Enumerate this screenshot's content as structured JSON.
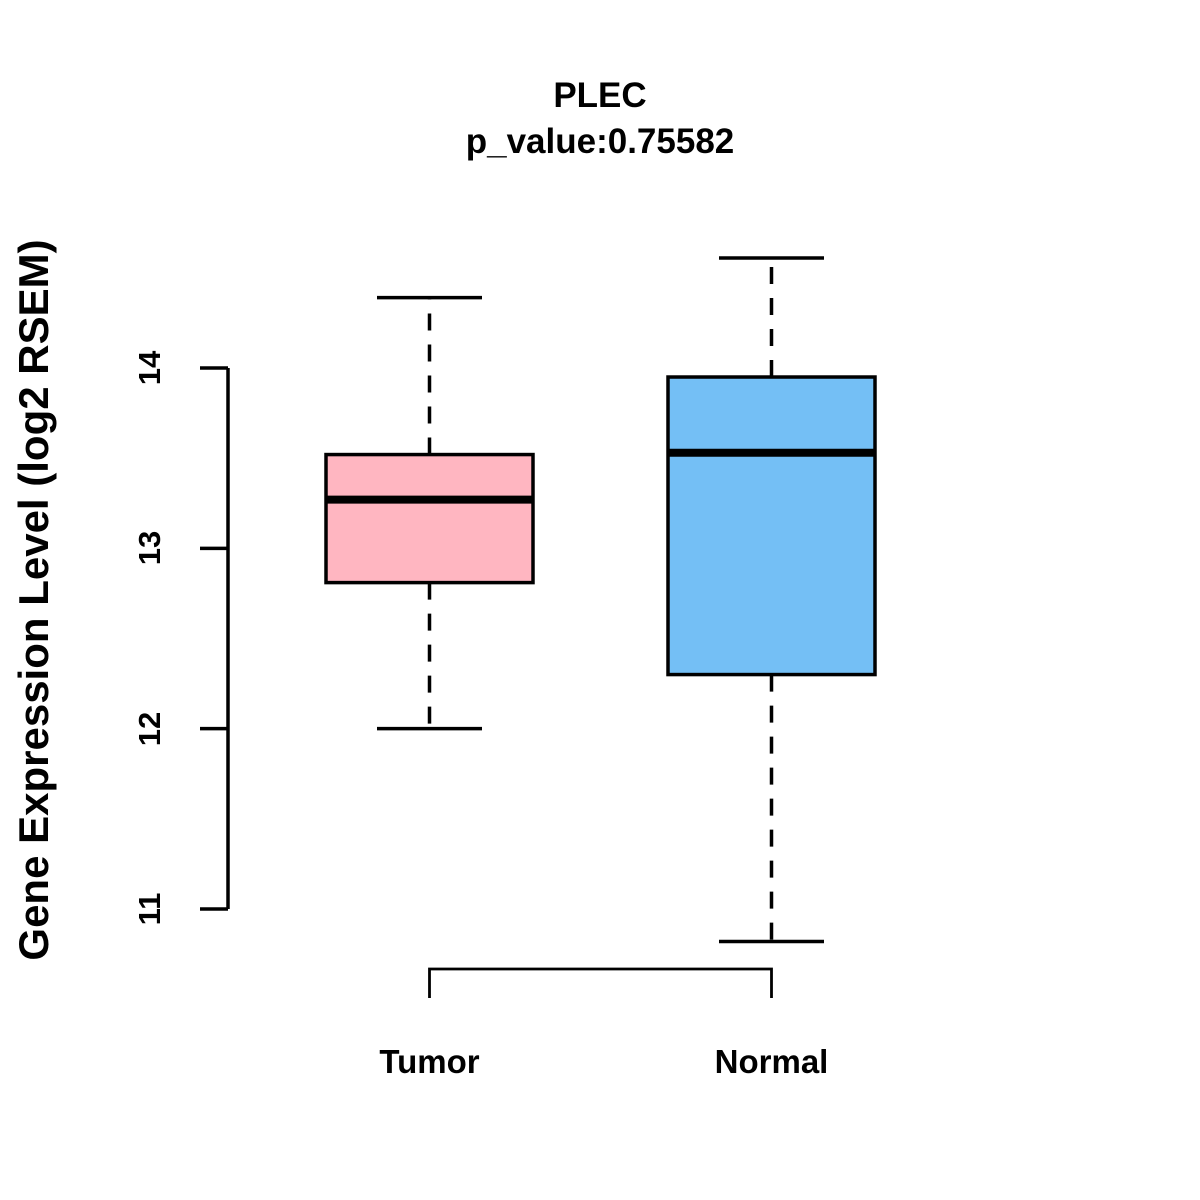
{
  "chart_data": {
    "type": "boxplot",
    "title": "PLEC",
    "subtitle": "p_value:0.75582",
    "ylabel": "Gene Expression Level (log2 RSEM)",
    "xlabel": "",
    "categories": [
      "Tumor",
      "Normal"
    ],
    "yticks": [
      11,
      12,
      13,
      14
    ],
    "ylim": [
      10.6,
      14.8
    ],
    "grid": false,
    "legend": "none",
    "series": [
      {
        "name": "Tumor",
        "color": "#FFB6C1",
        "min": 12.0,
        "q1": 12.81,
        "median": 13.27,
        "q3": 13.52,
        "max": 14.39
      },
      {
        "name": "Normal",
        "color": "#74BFF5",
        "min": 10.82,
        "q1": 12.3,
        "median": 13.53,
        "q3": 13.95,
        "max": 14.61
      }
    ],
    "comparison_bracket": {
      "between": [
        "Tumor",
        "Normal"
      ],
      "shown": true
    }
  }
}
